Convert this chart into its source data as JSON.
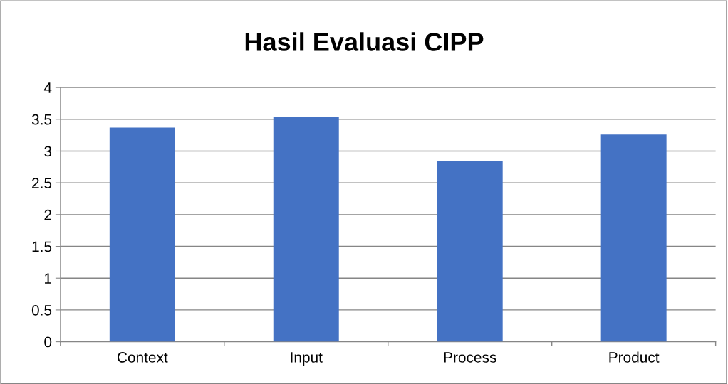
{
  "chart_data": {
    "type": "bar",
    "title": "Hasil Evaluasi CIPP",
    "categories": [
      "Context",
      "Input",
      "Process",
      "Product"
    ],
    "values": [
      3.37,
      3.53,
      2.85,
      3.26
    ],
    "color": "#4472c4",
    "ylim": [
      0,
      4
    ],
    "yticks": [
      0,
      0.5,
      1,
      1.5,
      2,
      2.5,
      3,
      3.5,
      4
    ],
    "grid": "y",
    "legend": false
  }
}
